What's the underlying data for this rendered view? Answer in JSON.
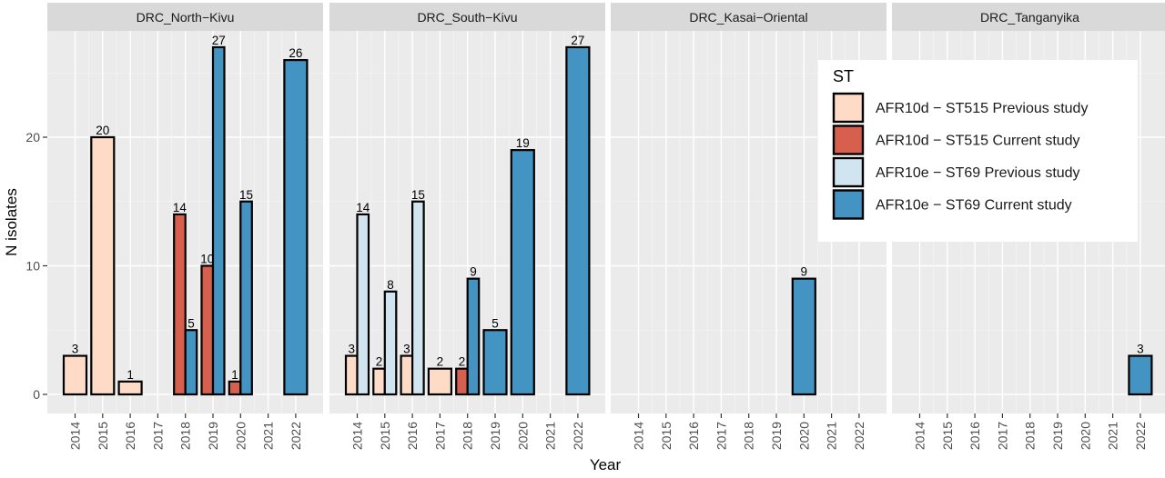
{
  "chart_data": {
    "type": "bar",
    "xlabel": "Year",
    "ylabel": "N isolates",
    "ylim": [
      0,
      29
    ],
    "y_ticks": [
      0,
      10,
      20
    ],
    "years": [
      "2014",
      "2015",
      "2016",
      "2017",
      "2018",
      "2019",
      "2020",
      "2021",
      "2022"
    ],
    "grid": true,
    "legend": {
      "title": "ST",
      "placement": "right-inset",
      "entries": [
        {
          "key": "prev10d",
          "label": "AFR10d − ST515  Previous study",
          "color": "#FDDBC7"
        },
        {
          "key": "curr10d",
          "label": "AFR10d − ST515  Current study",
          "color": "#D6604D"
        },
        {
          "key": "prev10e",
          "label": "AFR10e − ST69  Previous study",
          "color": "#D1E5F0"
        },
        {
          "key": "curr10e",
          "label": "AFR10e − ST69  Current study",
          "color": "#4393C3"
        }
      ]
    },
    "panels": [
      {
        "name": "DRC_North−Kivu",
        "bars": [
          {
            "year": "2014",
            "series": "prev10d",
            "value": 3
          },
          {
            "year": "2015",
            "series": "prev10d",
            "value": 20
          },
          {
            "year": "2016",
            "series": "prev10d",
            "value": 1
          },
          {
            "year": "2018",
            "series": "curr10d",
            "value": 14
          },
          {
            "year": "2018",
            "series": "curr10e",
            "value": 5
          },
          {
            "year": "2019",
            "series": "curr10d",
            "value": 10
          },
          {
            "year": "2019",
            "series": "curr10e",
            "value": 27
          },
          {
            "year": "2020",
            "series": "curr10d",
            "value": 1
          },
          {
            "year": "2020",
            "series": "curr10e",
            "value": 15
          },
          {
            "year": "2022",
            "series": "curr10e",
            "value": 26
          }
        ]
      },
      {
        "name": "DRC_South−Kivu",
        "bars": [
          {
            "year": "2014",
            "series": "prev10d",
            "value": 3
          },
          {
            "year": "2014",
            "series": "prev10e",
            "value": 14
          },
          {
            "year": "2015",
            "series": "prev10d",
            "value": 2
          },
          {
            "year": "2015",
            "series": "prev10e",
            "value": 8
          },
          {
            "year": "2016",
            "series": "prev10d",
            "value": 3
          },
          {
            "year": "2016",
            "series": "prev10e",
            "value": 15
          },
          {
            "year": "2017",
            "series": "prev10d",
            "value": 2
          },
          {
            "year": "2018",
            "series": "curr10d",
            "value": 2
          },
          {
            "year": "2018",
            "series": "curr10e",
            "value": 9
          },
          {
            "year": "2019",
            "series": "curr10e",
            "value": 5
          },
          {
            "year": "2020",
            "series": "curr10e",
            "value": 19
          },
          {
            "year": "2022",
            "series": "curr10e",
            "value": 27
          }
        ]
      },
      {
        "name": "DRC_Kasai−Oriental",
        "bars": [
          {
            "year": "2020",
            "series": "curr10e",
            "value": 9
          }
        ]
      },
      {
        "name": "DRC_Tanganyika",
        "bars": [
          {
            "year": "2022",
            "series": "curr10e",
            "value": 3
          }
        ]
      }
    ]
  }
}
